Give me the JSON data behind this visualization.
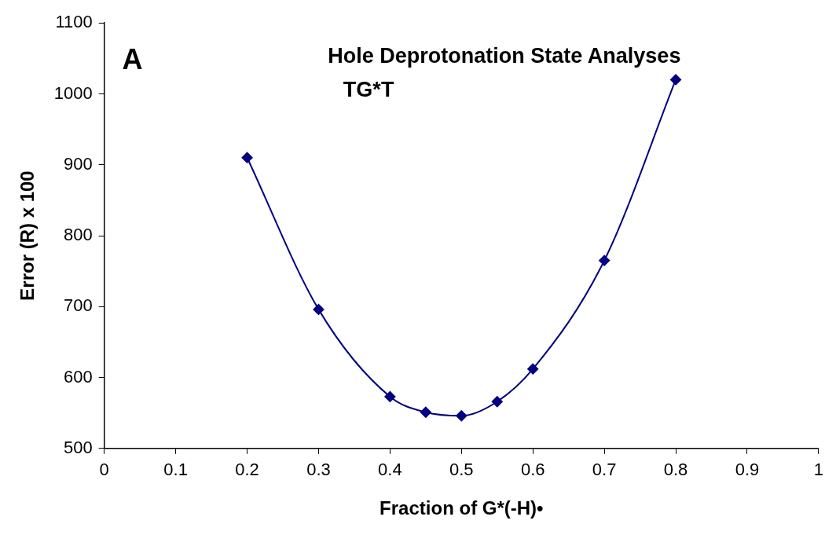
{
  "chart_data": {
    "type": "line",
    "title": "Hole Deprotonation State Analyses",
    "subtitle": "TG*T",
    "annotations": [
      "A"
    ],
    "xlabel": "Fraction of G*(-H)•",
    "ylabel": "Error (R) x 100",
    "x": [
      0.2,
      0.3,
      0.4,
      0.45,
      0.5,
      0.55,
      0.6,
      0.7,
      0.8
    ],
    "series": [
      {
        "color": "#000080",
        "values": [
          910,
          696,
          573,
          551,
          546,
          566,
          612,
          765,
          1020
        ]
      }
    ],
    "xlim": [
      0,
      1
    ],
    "xticks": [
      0,
      0.1,
      0.2,
      0.3,
      0.4,
      0.5,
      0.6,
      0.7,
      0.8,
      0.9,
      1
    ],
    "ylim": [
      500,
      1100
    ],
    "yticks": [
      500,
      600,
      700,
      800,
      900,
      1000,
      1100
    ],
    "grid": false,
    "legend": false,
    "marker": "diamond",
    "line_style": "solid"
  }
}
